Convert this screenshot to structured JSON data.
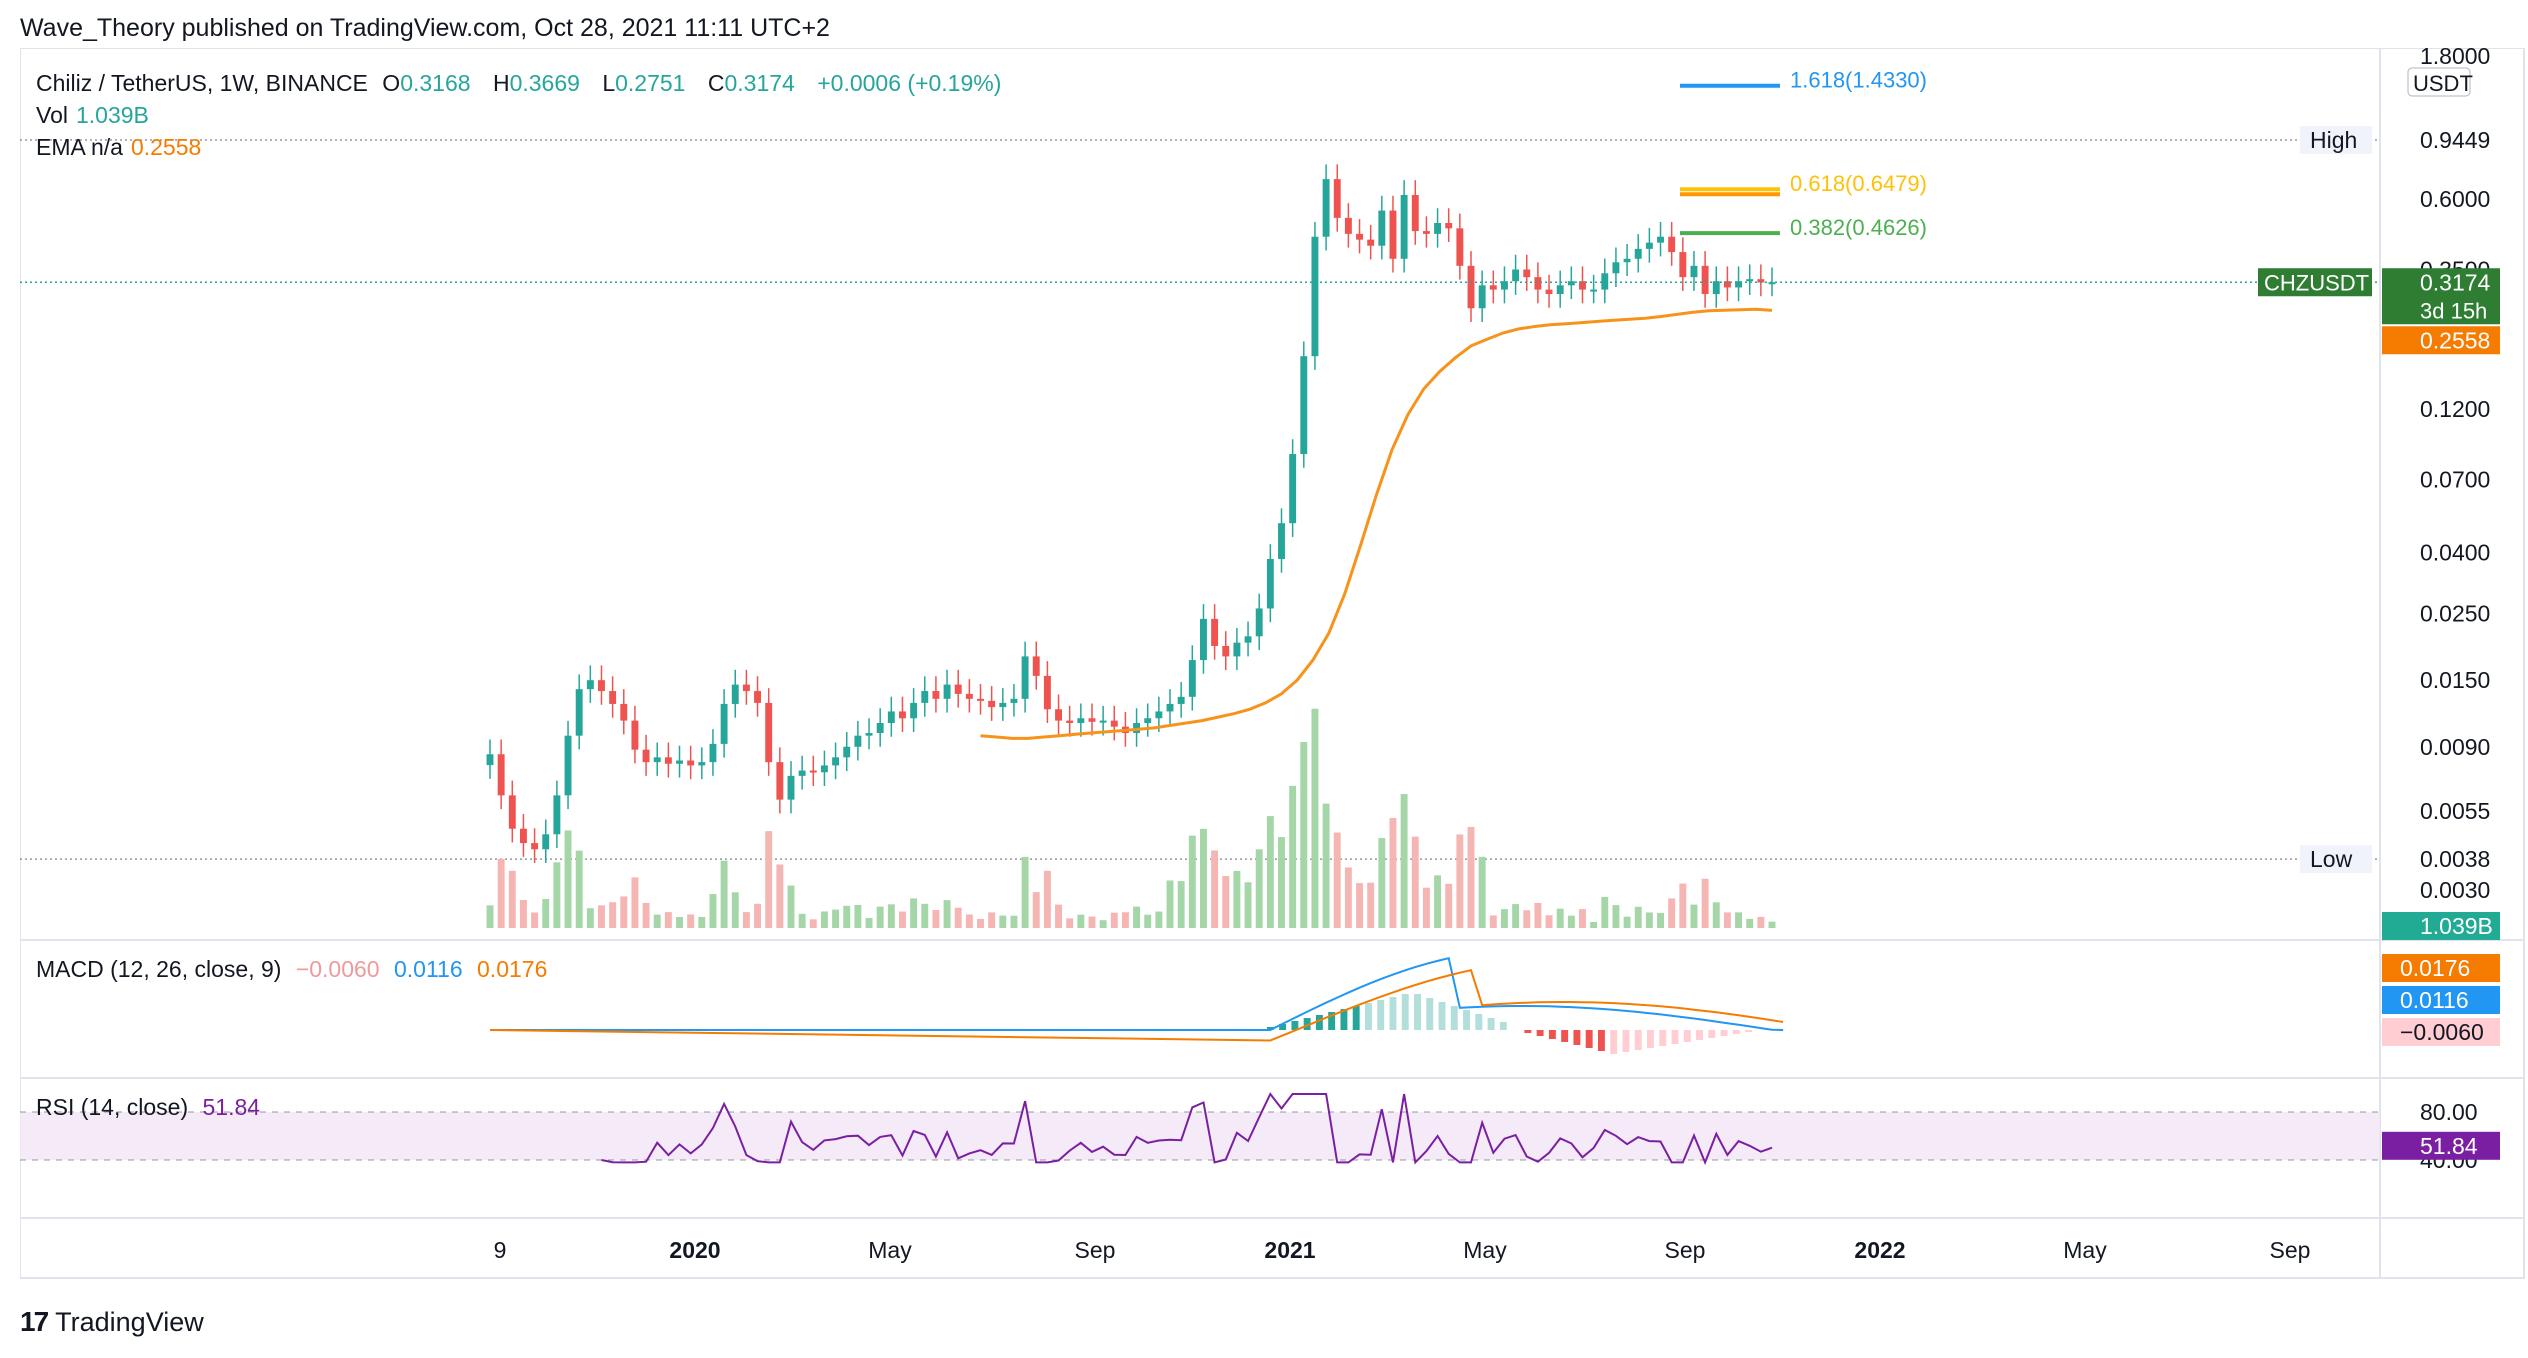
{
  "header": {
    "published": "Wave_Theory published on TradingView.com, Oct 28, 2021 11:11 UTC+2"
  },
  "legend": {
    "symbol": "Chiliz / TetherUS, 1W, BINANCE",
    "o_label": "O",
    "o": "0.3168",
    "h_label": "H",
    "h": "0.3669",
    "l_label": "L",
    "l": "0.2751",
    "c_label": "C",
    "c": "0.3174",
    "change": "+0.0006 (+0.19%)",
    "vol_label": "Vol",
    "vol": "1.039B",
    "ema_label": "EMA n/a",
    "ema": "0.2558"
  },
  "macd_legend": {
    "label": "MACD (12, 26, close, 9)",
    "hist": "−0.0060",
    "macd": "0.0116",
    "signal": "0.0176"
  },
  "rsi_legend": {
    "label": "RSI (14, close)",
    "value": "51.84"
  },
  "footer": {
    "brand": "TradingView"
  },
  "colors": {
    "up": "#26a69a",
    "down": "#ef5350",
    "ema": "#f7931a",
    "macd": "#2196f3",
    "signal": "#f57c00",
    "rsi": "#7b1fa2",
    "fib_blue": "#2196f3",
    "fib_green": "#4caf50",
    "fib_yellow": "#ffc107",
    "fib_orange": "#ff9800"
  },
  "chart_data": {
    "type": "candlestick",
    "pair": "CHZUSDT",
    "interval": "1W",
    "scale": "log",
    "currency": "USDT",
    "price_axis_ticks": [
      "1.8000",
      "0.9449",
      "0.6000",
      "0.3500",
      "0.1200",
      "0.0700",
      "0.0400",
      "0.0250",
      "0.0150",
      "0.0090",
      "0.0055",
      "0.0038",
      "0.0030"
    ],
    "time_axis_ticks": [
      "9",
      "2020",
      "May",
      "Sep",
      "2021",
      "May",
      "Sep",
      "2022",
      "May",
      "Sep"
    ],
    "high_label": "High",
    "high": "0.9449",
    "low_label": "Low",
    "low": "0.0038",
    "last_price_label": "CHZUSDT",
    "last_price": "0.3174",
    "countdown": "3d 15h",
    "ema_value": "0.2558",
    "vol_value": "1.039B",
    "fib_levels": [
      {
        "ratio": "1.618(1.4330)",
        "price": 1.433,
        "color": "#2196f3"
      },
      {
        "ratio": "0.618(0.6479)",
        "price": 0.6479,
        "color": "#ffc107"
      },
      {
        "ratio": "0.382(0.4626)",
        "price": 0.4626,
        "color": "#4caf50"
      }
    ],
    "closes": [
      0.0085,
      0.0062,
      0.0048,
      0.0043,
      0.0041,
      0.0046,
      0.0062,
      0.0098,
      0.014,
      0.015,
      0.0138,
      0.0125,
      0.011,
      0.0088,
      0.008,
      0.0083,
      0.0079,
      0.0081,
      0.0078,
      0.008,
      0.0092,
      0.0125,
      0.0145,
      0.0138,
      0.0126,
      0.008,
      0.006,
      0.0072,
      0.0075,
      0.0074,
      0.0078,
      0.0083,
      0.009,
      0.0098,
      0.01,
      0.0108,
      0.0118,
      0.0112,
      0.0126,
      0.0138,
      0.013,
      0.0145,
      0.0135,
      0.013,
      0.0128,
      0.0122,
      0.0126,
      0.013,
      0.018,
      0.0155,
      0.012,
      0.011,
      0.0108,
      0.0112,
      0.0109,
      0.011,
      0.0105,
      0.01,
      0.0108,
      0.0112,
      0.0118,
      0.0125,
      0.0132,
      0.0175,
      0.024,
      0.0195,
      0.018,
      0.02,
      0.021,
      0.026,
      0.038,
      0.05,
      0.085,
      0.18,
      0.45,
      0.7,
      0.52,
      0.46,
      0.44,
      0.42,
      0.55,
      0.38,
      0.62,
      0.47,
      0.46,
      0.5,
      0.48,
      0.36,
      0.26,
      0.31,
      0.3,
      0.32,
      0.35,
      0.33,
      0.3,
      0.29,
      0.31,
      0.32,
      0.3,
      0.3,
      0.34,
      0.37,
      0.38,
      0.41,
      0.43,
      0.45,
      0.4,
      0.33,
      0.36,
      0.29,
      0.32,
      0.305,
      0.32,
      0.325,
      0.3168,
      0.3174
    ],
    "ema": [
      0.0098,
      0.0097,
      0.0096,
      0.0096,
      0.0097,
      0.0098,
      0.0099,
      0.01,
      0.0101,
      0.0102,
      0.0103,
      0.0104,
      0.0106,
      0.0108,
      0.011,
      0.0113,
      0.0116,
      0.012,
      0.0126,
      0.0135,
      0.015,
      0.0175,
      0.0215,
      0.029,
      0.042,
      0.062,
      0.088,
      0.115,
      0.14,
      0.16,
      0.178,
      0.195,
      0.205,
      0.215,
      0.222,
      0.226,
      0.229,
      0.231,
      0.233,
      0.235,
      0.237,
      0.239,
      0.241,
      0.244,
      0.248,
      0.252,
      0.255,
      0.256,
      0.257,
      0.258,
      0.2558
    ],
    "macd": {
      "hist_last": -0.006,
      "macd_last": 0.0116,
      "signal_last": 0.0176
    },
    "rsi": {
      "last": 51.84,
      "upper": 80,
      "lower": 40,
      "ticks": [
        "80.00",
        "40.00"
      ]
    }
  }
}
